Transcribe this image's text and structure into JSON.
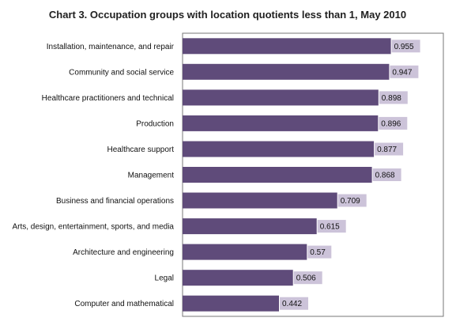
{
  "chart_data": {
    "type": "bar",
    "orientation": "horizontal",
    "title": "Chart 3. Occupation  groups with location quotients less than 1, May 2010",
    "categories": [
      "Installation, maintenance, and repair",
      "Community and social service",
      "Healthcare practitioners and technical",
      "Production",
      "Healthcare support",
      "Management",
      "Business and financial operations",
      "Arts, design, entertainment, sports, and media",
      "Architecture and engineering",
      "Legal",
      "Computer and mathematical"
    ],
    "values": [
      0.955,
      0.947,
      0.898,
      0.896,
      0.877,
      0.868,
      0.709,
      0.615,
      0.57,
      0.506,
      0.442
    ],
    "value_labels": [
      "0.955",
      "0.947",
      "0.898",
      "0.896",
      "0.877",
      "0.868",
      "0.709",
      "0.615",
      "0.57",
      "0.506",
      "0.442"
    ],
    "xlim": [
      0,
      1
    ],
    "grid": false,
    "legend": "none",
    "colors": {
      "bar": "#5f4b7a",
      "label_box": "#ccc3d9",
      "axis": "#777777"
    }
  }
}
